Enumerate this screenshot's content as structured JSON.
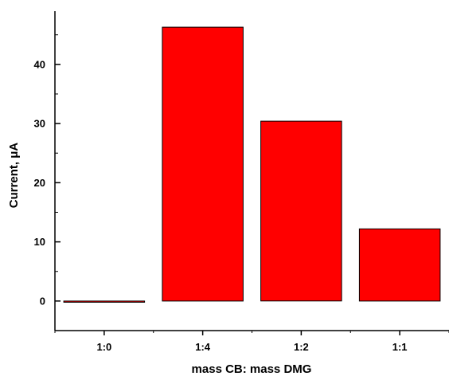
{
  "chart_data": {
    "type": "bar",
    "categories": [
      "1:0",
      "1:4",
      "1:2",
      "1:1"
    ],
    "values": [
      0,
      46.3,
      30.4,
      12.2
    ],
    "title": "",
    "xlabel": "mass CB: mass DMG",
    "ylabel": "Current, μA",
    "ylim": [
      -5,
      49
    ],
    "yticks": [
      0,
      10,
      20,
      30,
      40
    ],
    "ytick_labels": [
      "0",
      "10",
      "20",
      "30",
      "40"
    ],
    "grid": false,
    "legend": "none",
    "bar_color": "#ff0000",
    "bar_edge_color": "#000000"
  }
}
